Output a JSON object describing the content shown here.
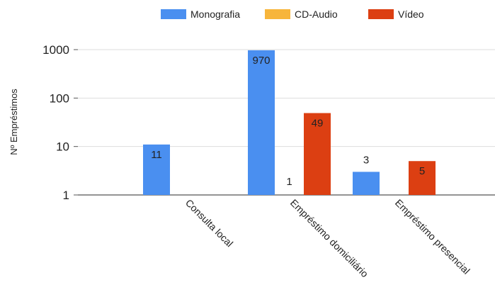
{
  "chart_data": {
    "type": "bar",
    "title": "",
    "xlabel": "",
    "ylabel": "Nº Empréstimos",
    "yscale": "log",
    "ylim": [
      1,
      1000
    ],
    "yticks": [
      1,
      10,
      100,
      1000
    ],
    "ytick_labels": [
      "1",
      "10",
      "100",
      "1000"
    ],
    "grid": true,
    "legend_position": "top-center",
    "categories": [
      "Consulta local",
      "Empréstimo domiciliário",
      "Empréstimo presencial"
    ],
    "series": [
      {
        "name": "Monografia",
        "color": "#4a8ff0",
        "values": [
          11,
          970,
          3
        ],
        "labels": [
          "11",
          "970",
          "3"
        ]
      },
      {
        "name": "CD-Audio",
        "color": "#f7b53b",
        "values": [
          null,
          1,
          null
        ],
        "labels": [
          "",
          "1",
          ""
        ]
      },
      {
        "name": "Vídeo",
        "color": "#dc3f12",
        "values": [
          null,
          49,
          5
        ],
        "labels": [
          "",
          "49",
          "5"
        ]
      }
    ]
  }
}
